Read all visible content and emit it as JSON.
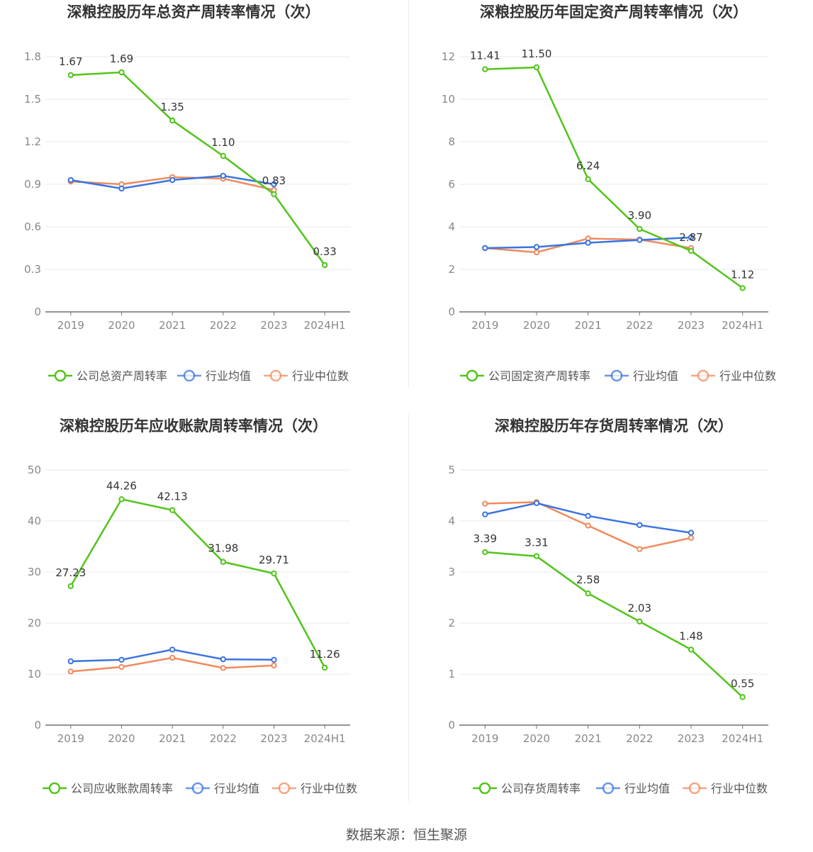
{
  "source": "数据来源：恒生聚源",
  "chart_data": [
    {
      "type": "line",
      "title": "深粮控股历年总资产周转率情况（次）",
      "categories": [
        "2019",
        "2020",
        "2021",
        "2022",
        "2023",
        "2024H1"
      ],
      "ylim": [
        0,
        1.8
      ],
      "yticks": [
        "0",
        "0.3",
        "0.6",
        "0.9",
        "1.2",
        "1.5",
        "1.8"
      ],
      "ytick_values": [
        0,
        0.3,
        0.6,
        0.9,
        1.2,
        1.5,
        1.8
      ],
      "grid": true,
      "legend_position": "bottom",
      "series": [
        {
          "name": "公司总资产周转率",
          "color": "#52c41a",
          "values": [
            1.67,
            1.69,
            1.35,
            1.1,
            0.83,
            0.33
          ],
          "labels": [
            "1.67",
            "1.69",
            "1.35",
            "1.10",
            "0.83",
            "0.33"
          ]
        },
        {
          "name": "行业均值",
          "color": "#3b74e0",
          "values": [
            0.93,
            0.87,
            0.93,
            0.96,
            0.9,
            null
          ],
          "labels": []
        },
        {
          "name": "行业中位数",
          "color": "#f08a5d",
          "values": [
            0.92,
            0.9,
            0.95,
            0.94,
            0.86,
            null
          ],
          "labels": []
        }
      ]
    },
    {
      "type": "line",
      "title": "深粮控股历年固定资产周转率情况（次）",
      "categories": [
        "2019",
        "2020",
        "2021",
        "2022",
        "2023",
        "2024H1"
      ],
      "ylim": [
        0,
        12
      ],
      "yticks": [
        "0",
        "2",
        "4",
        "6",
        "8",
        "10",
        "12"
      ],
      "ytick_values": [
        0,
        2,
        4,
        6,
        8,
        10,
        12
      ],
      "grid": true,
      "legend_position": "bottom",
      "series": [
        {
          "name": "公司固定资产周转率",
          "color": "#52c41a",
          "values": [
            11.41,
            11.5,
            6.24,
            3.9,
            2.87,
            1.12
          ],
          "labels": [
            "11.41",
            "11.50",
            "6.24",
            "3.90",
            "2.87",
            "1.12"
          ]
        },
        {
          "name": "行业均值",
          "color": "#3b74e0",
          "values": [
            3.0,
            3.05,
            3.25,
            3.38,
            3.5,
            null
          ],
          "labels": []
        },
        {
          "name": "行业中位数",
          "color": "#f08a5d",
          "values": [
            3.0,
            2.8,
            3.45,
            3.4,
            3.0,
            null
          ],
          "labels": []
        }
      ]
    },
    {
      "type": "line",
      "title": "深粮控股历年应收账款周转率情况（次）",
      "categories": [
        "2019",
        "2020",
        "2021",
        "2022",
        "2023",
        "2024H1"
      ],
      "ylim": [
        0,
        50
      ],
      "yticks": [
        "0",
        "10",
        "20",
        "30",
        "40",
        "50"
      ],
      "ytick_values": [
        0,
        10,
        20,
        30,
        40,
        50
      ],
      "grid": true,
      "legend_position": "bottom",
      "series": [
        {
          "name": "公司应收账款周转率",
          "color": "#52c41a",
          "values": [
            27.23,
            44.26,
            42.13,
            31.98,
            29.71,
            11.26
          ],
          "labels": [
            "27.23",
            "44.26",
            "42.13",
            "31.98",
            "29.71",
            "11.26"
          ]
        },
        {
          "name": "行业均值",
          "color": "#3b74e0",
          "values": [
            12.5,
            12.8,
            14.8,
            12.9,
            12.8,
            null
          ],
          "labels": []
        },
        {
          "name": "行业中位数",
          "color": "#f08a5d",
          "values": [
            10.5,
            11.4,
            13.2,
            11.2,
            11.7,
            null
          ],
          "labels": []
        }
      ]
    },
    {
      "type": "line",
      "title": "深粮控股历年存货周转率情况（次）",
      "categories": [
        "2019",
        "2020",
        "2021",
        "2022",
        "2023",
        "2024H1"
      ],
      "ylim": [
        0,
        5
      ],
      "yticks": [
        "0",
        "1",
        "2",
        "3",
        "4",
        "5"
      ],
      "ytick_values": [
        0,
        1,
        2,
        3,
        4,
        5
      ],
      "grid": true,
      "legend_position": "bottom",
      "series": [
        {
          "name": "公司存货周转率",
          "color": "#52c41a",
          "values": [
            3.39,
            3.31,
            2.58,
            2.03,
            1.48,
            0.55
          ],
          "labels": [
            "3.39",
            "3.31",
            "2.58",
            "2.03",
            "1.48",
            "0.55"
          ]
        },
        {
          "name": "行业均值",
          "color": "#3b74e0",
          "values": [
            4.13,
            4.35,
            4.1,
            3.92,
            3.77,
            null
          ],
          "labels": []
        },
        {
          "name": "行业中位数",
          "color": "#f08a5d",
          "values": [
            4.34,
            4.37,
            3.91,
            3.45,
            3.67,
            null
          ],
          "labels": []
        }
      ]
    }
  ]
}
